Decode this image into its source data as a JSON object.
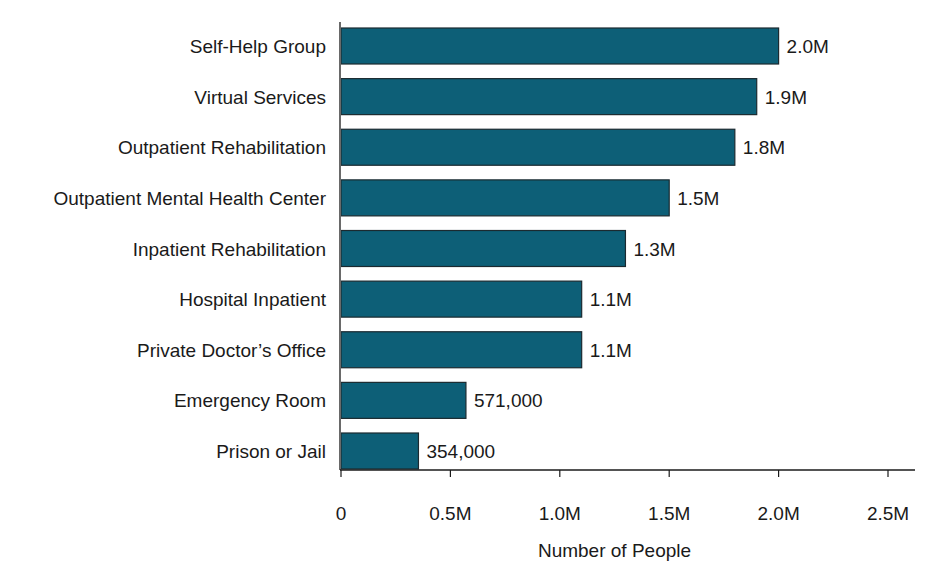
{
  "chart_data": {
    "type": "bar",
    "orientation": "horizontal",
    "categories": [
      "Self-Help Group",
      "Virtual Services",
      "Outpatient Rehabilitation",
      "Outpatient Mental Health Center",
      "Inpatient Rehabilitation",
      "Hospital Inpatient",
      "Private Doctor’s Office",
      "Emergency Room",
      "Prison or Jail"
    ],
    "values": [
      2000000,
      1900000,
      1800000,
      1500000,
      1300000,
      1100000,
      1100000,
      571000,
      354000
    ],
    "value_labels": [
      "2.0M",
      "1.9M",
      "1.8M",
      "1.5M",
      "1.3M",
      "1.1M",
      "1.1M",
      "571,000",
      "354,000"
    ],
    "data_labels": true,
    "color": "#0d5f77",
    "x_label": "Number of People",
    "xlim": [
      0,
      2500000
    ],
    "xticks": [
      0,
      {
        "value": 500000,
        "label": "0.5M"
      },
      {
        "value": 1000000,
        "label": "1.0M"
      },
      {
        "value": 1500000,
        "label": "1.5M"
      },
      {
        "value": 2000000,
        "label": "2.0M"
      },
      {
        "value": 2500000,
        "label": "2.5M"
      }
    ],
    "grid": false
  }
}
